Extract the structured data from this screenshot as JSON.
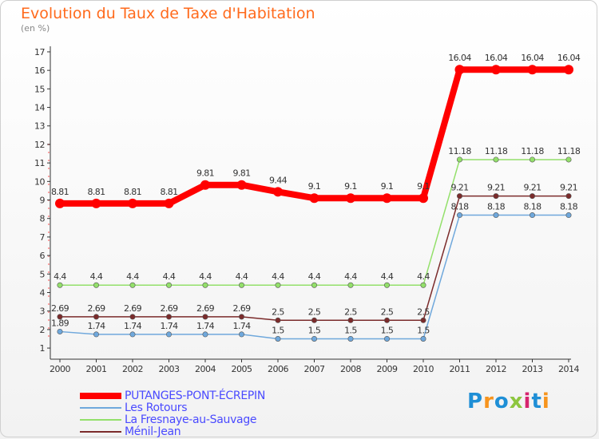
{
  "title": "Evolution du Taux de Taxe d'Habitation",
  "subtitle": "(en %)",
  "chart_data": {
    "type": "line",
    "x": [
      "2000",
      "2001",
      "2002",
      "2003",
      "2004",
      "2005",
      "2006",
      "2007",
      "2008",
      "2009",
      "2010",
      "2011",
      "2012",
      "2013",
      "2014"
    ],
    "yticks": [
      1,
      2,
      3,
      4,
      5,
      6,
      7,
      8,
      9,
      10,
      11,
      12,
      13,
      14,
      15,
      16,
      17
    ],
    "ylim": [
      0.4,
      17.3
    ],
    "grid": false,
    "legend_position": "bottom-left",
    "series": [
      {
        "name": "PUTANGES-PONT-ÉCREPIN",
        "color": "#ff0000",
        "values": [
          8.81,
          8.81,
          8.81,
          8.81,
          9.81,
          9.81,
          9.44,
          9.1,
          9.1,
          9.1,
          9.1,
          16.04,
          16.04,
          16.04,
          16.04
        ],
        "labels": [
          "8.81",
          "8.81",
          "8.81",
          "8.81",
          "9.81",
          "9.81",
          "9.44",
          "9.1",
          "9.1",
          "9.1",
          "9.1",
          "16.04",
          "16.04",
          "16.04",
          "16.04"
        ]
      },
      {
        "name": "Les Rotours",
        "color": "#6fa8dc",
        "values": [
          1.89,
          1.74,
          1.74,
          1.74,
          1.74,
          1.74,
          1.5,
          1.5,
          1.5,
          1.5,
          1.5,
          8.18,
          8.18,
          8.18,
          8.18
        ],
        "labels": [
          "1.89",
          "1.74",
          "1.74",
          "1.74",
          "1.74",
          "1.74",
          "1.5",
          "1.5",
          "1.5",
          "1.5",
          "1.5",
          "8.18",
          "8.18",
          "8.18",
          "8.18"
        ]
      },
      {
        "name": "La Fresnaye-au-Sauvage",
        "color": "#93e06a",
        "values": [
          4.4,
          4.4,
          4.4,
          4.4,
          4.4,
          4.4,
          4.4,
          4.4,
          4.4,
          4.4,
          4.4,
          11.18,
          11.18,
          11.18,
          11.18
        ],
        "labels": [
          "4.4",
          "4.4",
          "4.4",
          "4.4",
          "4.4",
          "4.4",
          "4.4",
          "4.4",
          "4.4",
          "4.4",
          "4.4",
          "11.18",
          "11.18",
          "11.18",
          "11.18"
        ]
      },
      {
        "name": "Ménil-Jean",
        "color": "#7b2b2b",
        "values": [
          2.69,
          2.69,
          2.69,
          2.69,
          2.69,
          2.69,
          2.5,
          2.5,
          2.5,
          2.5,
          2.5,
          9.21,
          9.21,
          9.21,
          9.21
        ],
        "labels": [
          "2.69",
          "2.69",
          "2.69",
          "2.69",
          "2.69",
          "2.69",
          "2.5",
          "2.5",
          "2.5",
          "2.5",
          "2.5",
          "9.21",
          "9.21",
          "9.21",
          "9.21"
        ]
      }
    ]
  },
  "logo": {
    "text": "Proxiti",
    "colors": [
      "#1f8fd6",
      "#f7941d",
      "#1f8fd6",
      "#8dc63f",
      "#d6246e",
      "#1f8fd6",
      "#f7941d"
    ]
  }
}
